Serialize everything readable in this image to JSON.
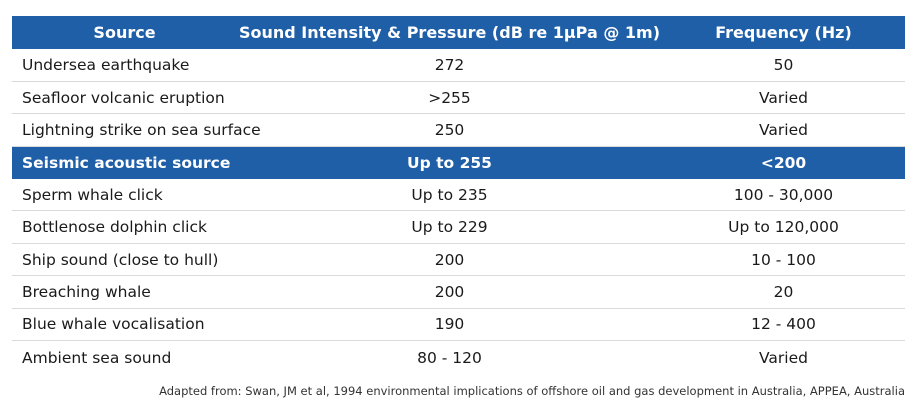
{
  "table": {
    "headers": {
      "source": "Source",
      "intensity": "Sound Intensity & Pressure (dB re 1µPa @ 1m)",
      "frequency": "Frequency (Hz)"
    },
    "rows": [
      {
        "source": "Undersea earthquake",
        "intensity": "272",
        "frequency": "50",
        "highlight": false
      },
      {
        "source": "Seafloor volcanic eruption",
        "intensity": ">255",
        "frequency": "Varied",
        "highlight": false
      },
      {
        "source": "Lightning strike on sea surface",
        "intensity": "250",
        "frequency": "Varied",
        "highlight": false
      },
      {
        "source": "Seismic acoustic source",
        "intensity": "Up to 255",
        "frequency": "<200",
        "highlight": true
      },
      {
        "source": "Sperm whale click",
        "intensity": "Up to 235",
        "frequency": "100 - 30,000",
        "highlight": false
      },
      {
        "source": "Bottlenose dolphin click",
        "intensity": "Up to 229",
        "frequency": "Up to 120,000",
        "highlight": false
      },
      {
        "source": "Ship sound (close to hull)",
        "intensity": "200",
        "frequency": "10 - 100",
        "highlight": false
      },
      {
        "source": "Breaching whale",
        "intensity": "200",
        "frequency": "20",
        "highlight": false
      },
      {
        "source": "Blue whale vocalisation",
        "intensity": "190",
        "frequency": "12 - 400",
        "highlight": false
      },
      {
        "source": "Ambient sea sound",
        "intensity": "80 - 120",
        "frequency": "Varied",
        "highlight": false
      }
    ]
  },
  "caption": "Adapted from: Swan, JM et al, 1994 environmental implications of offshore oil and gas development in Australia, APPEA, Australia",
  "colors": {
    "header_bg": "#1f5fa8",
    "header_text": "#ffffff"
  }
}
